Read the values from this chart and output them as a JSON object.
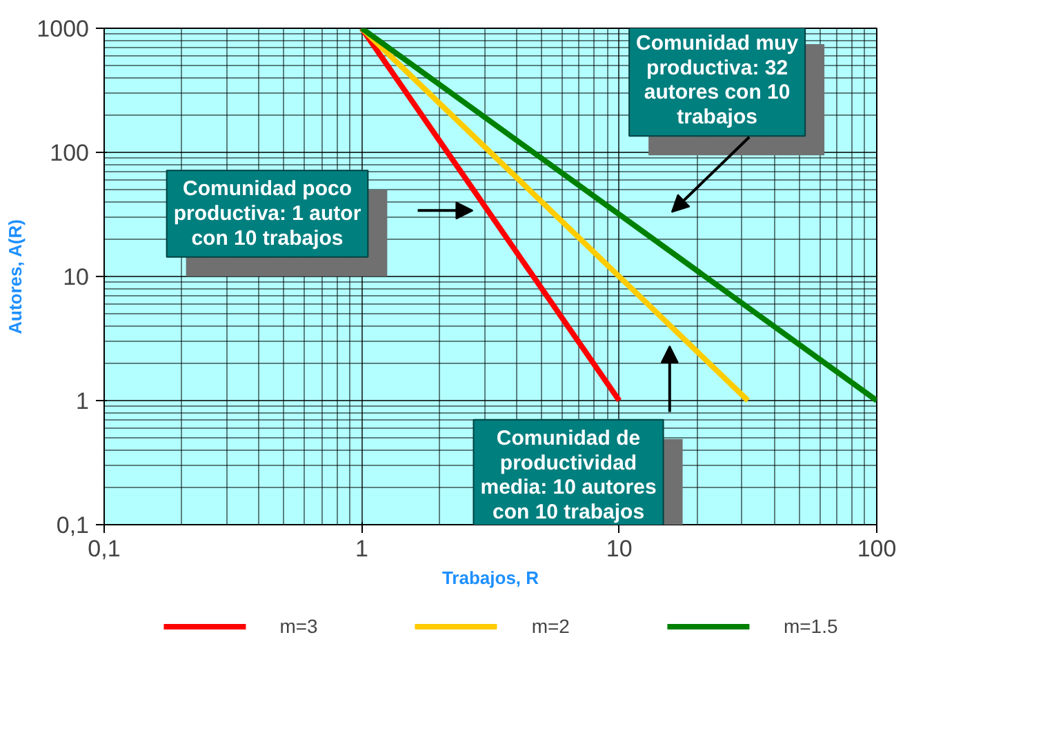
{
  "chart_data": {
    "type": "line",
    "xlabel": "Trabajos, R",
    "ylabel": "Autores, A(R)",
    "log": "xy",
    "grid": true,
    "legend": "bottom",
    "marker": "none",
    "line_style": "solid",
    "xlim": [
      0.1,
      100
    ],
    "ylim": [
      0.1,
      1000
    ],
    "xticks": [
      {
        "value": 0.1,
        "label": "0,1"
      },
      1,
      10,
      100
    ],
    "yticks": [
      {
        "value": 0.1,
        "label": "0,1"
      },
      1,
      10,
      100,
      1000
    ],
    "series": [
      {
        "name": "m=3",
        "color": "#ff0000",
        "x": [
          1,
          10
        ],
        "values": [
          1000,
          1
        ]
      },
      {
        "name": "m=2",
        "color": "#ffcc00",
        "x": [
          1,
          31.6
        ],
        "values": [
          1000,
          1
        ]
      },
      {
        "name": "m=1.5",
        "color": "#008000",
        "x": [
          1,
          100
        ],
        "values": [
          1000,
          1
        ]
      }
    ],
    "annotations": [
      "Comunidad poco\nproductiva: 1 autor\ncon 10 trabajos",
      "Comunidad muy\nproductiva: 32\nautores con 10\ntrabajos",
      "Comunidad de\nproductividad\nmedia: 10 autores\ncon 10 trabajos"
    ]
  }
}
